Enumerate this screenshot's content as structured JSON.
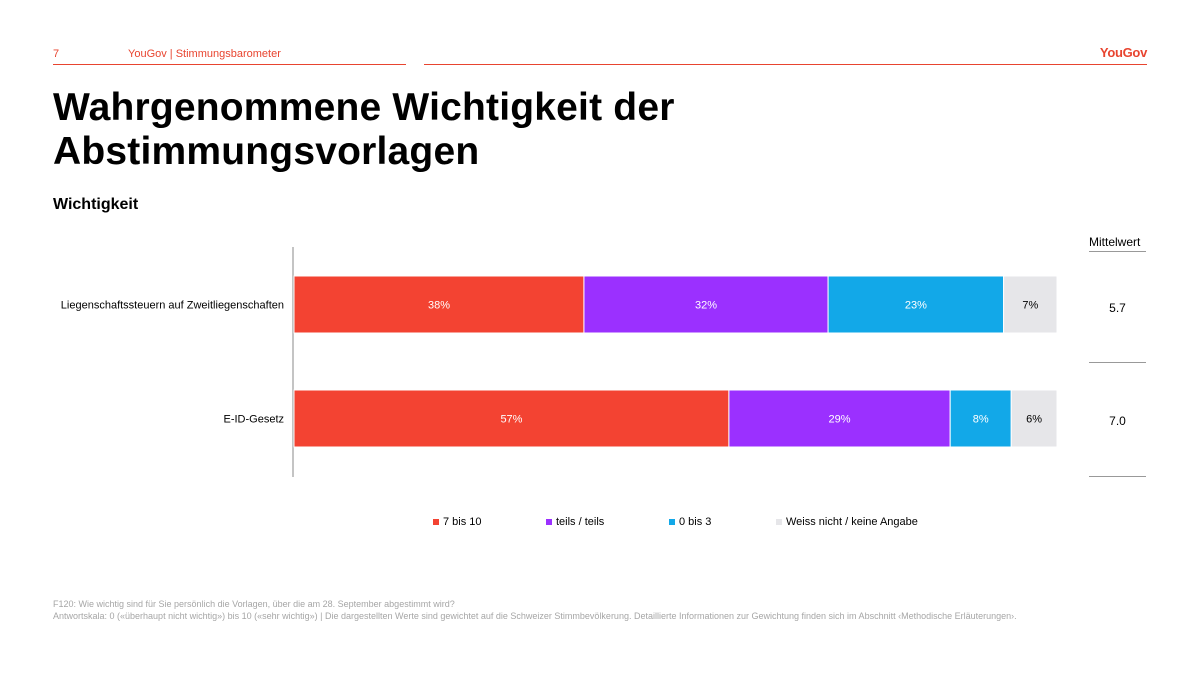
{
  "header": {
    "page_number": "7",
    "source": "YouGov | Stimmungsbarometer",
    "logo": "YouGov"
  },
  "title": "Wahrgenommene Wichtigkeit der Abstimmungsvorlagen",
  "subtitle": "Wichtigkeit",
  "mean": {
    "header": "Mittelwert",
    "values": [
      "5.7",
      "7.0"
    ]
  },
  "colors": {
    "red": "#f34332",
    "purple": "#9b30ff",
    "blue": "#12a8e8",
    "grey": "#e6e6e9",
    "accent": "#e8442f"
  },
  "chart_data": {
    "type": "bar",
    "orientation": "horizontal",
    "stacked": true,
    "categories": [
      "Liegenschaftssteuern auf Zweitliegenschaften",
      "E-ID-Gesetz"
    ],
    "series": [
      {
        "name": "7 bis 10",
        "values": [
          38,
          57
        ],
        "labels": [
          "38%",
          "57%"
        ],
        "color": "#f34332"
      },
      {
        "name": "teils / teils",
        "values": [
          32,
          29
        ],
        "labels": [
          "32%",
          "29%"
        ],
        "color": "#9b30ff"
      },
      {
        "name": "0 bis 3",
        "values": [
          23,
          8
        ],
        "labels": [
          "23%",
          "8%"
        ],
        "color": "#12a8e8"
      },
      {
        "name": "Weiss nicht / keine Angabe",
        "values": [
          7,
          6
        ],
        "labels": [
          "7%",
          "6%"
        ],
        "color": "#e6e6e9"
      }
    ],
    "xlim": [
      0,
      100
    ],
    "legend_position": "bottom",
    "grid": false
  },
  "footnote": {
    "line1": "F120: Wie wichtig sind für Sie persönlich die Vorlagen, über die am 28. September abgestimmt wird?",
    "line2": "Antwortskala: 0 («überhaupt nicht wichtig») bis 10 («sehr wichtig») | Die dargestellten Werte sind gewichtet auf die Schweizer Stimmbevölkerung. Detaillierte Informationen zur Gewichtung finden sich im Abschnitt ‹Methodische Erläuterungen›."
  }
}
